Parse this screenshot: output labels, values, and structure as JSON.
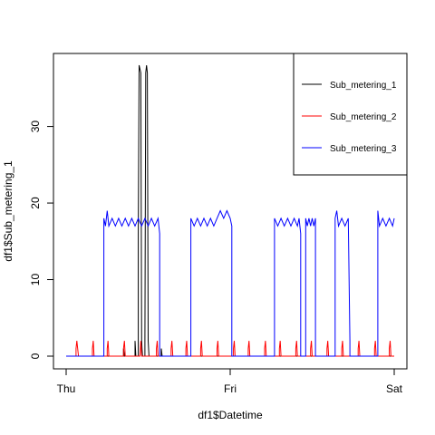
{
  "chart_data": {
    "type": "line",
    "title": "",
    "xlabel": "df1$Datetime",
    "ylabel": "df1$Sub_metering_1",
    "xlim": [
      0,
      2
    ],
    "ylim": [
      0,
      38
    ],
    "x_ticks": [
      {
        "value": 0,
        "label": "Thu"
      },
      {
        "value": 1,
        "label": "Fri"
      },
      {
        "value": 2,
        "label": "Sat"
      }
    ],
    "y_ticks": [
      0,
      10,
      20,
      30
    ],
    "grid": false,
    "legend_position": "top-right",
    "series": [
      {
        "name": "Sub_metering_1",
        "color": "#000000",
        "points": [
          [
            0.0,
            0
          ],
          [
            0.35,
            0
          ],
          [
            0.35,
            1
          ],
          [
            0.355,
            0
          ],
          [
            0.42,
            0
          ],
          [
            0.42,
            2
          ],
          [
            0.425,
            0
          ],
          [
            0.44,
            0
          ],
          [
            0.44,
            16
          ],
          [
            0.445,
            38
          ],
          [
            0.455,
            37
          ],
          [
            0.46,
            2
          ],
          [
            0.465,
            0
          ],
          [
            0.48,
            0
          ],
          [
            0.48,
            2
          ],
          [
            0.485,
            37
          ],
          [
            0.49,
            38
          ],
          [
            0.495,
            37
          ],
          [
            0.5,
            2
          ],
          [
            0.505,
            0
          ],
          [
            0.58,
            0
          ],
          [
            0.58,
            1
          ],
          [
            0.585,
            0
          ],
          [
            2.0,
            0
          ]
        ]
      },
      {
        "name": "Sub_metering_2",
        "color": "#ff0000",
        "points": [
          [
            0.0,
            0
          ],
          [
            0.06,
            0
          ],
          [
            0.06,
            1
          ],
          [
            0.065,
            2
          ],
          [
            0.07,
            1
          ],
          [
            0.075,
            0
          ],
          [
            0.16,
            0
          ],
          [
            0.16,
            1
          ],
          [
            0.165,
            2
          ],
          [
            0.17,
            0
          ],
          [
            0.25,
            0
          ],
          [
            0.25,
            1
          ],
          [
            0.255,
            2
          ],
          [
            0.26,
            0
          ],
          [
            0.35,
            0
          ],
          [
            0.35,
            1
          ],
          [
            0.355,
            2
          ],
          [
            0.36,
            0
          ],
          [
            0.45,
            0
          ],
          [
            0.455,
            2
          ],
          [
            0.46,
            0
          ],
          [
            0.55,
            0
          ],
          [
            0.55,
            1
          ],
          [
            0.555,
            2
          ],
          [
            0.56,
            0
          ],
          [
            0.64,
            0
          ],
          [
            0.64,
            1
          ],
          [
            0.645,
            2
          ],
          [
            0.65,
            0
          ],
          [
            0.73,
            0
          ],
          [
            0.73,
            1
          ],
          [
            0.735,
            2
          ],
          [
            0.74,
            0
          ],
          [
            0.82,
            0
          ],
          [
            0.82,
            1
          ],
          [
            0.825,
            2
          ],
          [
            0.83,
            0
          ],
          [
            0.92,
            0
          ],
          [
            0.92,
            1
          ],
          [
            0.925,
            2
          ],
          [
            0.93,
            0
          ],
          [
            1.02,
            0
          ],
          [
            1.02,
            1
          ],
          [
            1.025,
            2
          ],
          [
            1.03,
            0
          ],
          [
            1.11,
            0
          ],
          [
            1.11,
            1
          ],
          [
            1.115,
            2
          ],
          [
            1.12,
            0
          ],
          [
            1.21,
            0
          ],
          [
            1.21,
            1
          ],
          [
            1.215,
            2
          ],
          [
            1.22,
            0
          ],
          [
            1.3,
            0
          ],
          [
            1.3,
            1
          ],
          [
            1.305,
            2
          ],
          [
            1.31,
            0
          ],
          [
            1.4,
            0
          ],
          [
            1.4,
            1
          ],
          [
            1.405,
            2
          ],
          [
            1.41,
            0
          ],
          [
            1.49,
            0
          ],
          [
            1.49,
            1
          ],
          [
            1.495,
            2
          ],
          [
            1.5,
            0
          ],
          [
            1.59,
            0
          ],
          [
            1.59,
            1
          ],
          [
            1.595,
            2
          ],
          [
            1.6,
            0
          ],
          [
            1.68,
            0
          ],
          [
            1.68,
            1
          ],
          [
            1.685,
            2
          ],
          [
            1.69,
            0
          ],
          [
            1.78,
            0
          ],
          [
            1.78,
            1
          ],
          [
            1.785,
            2
          ],
          [
            1.79,
            0
          ],
          [
            1.88,
            0
          ],
          [
            1.88,
            1
          ],
          [
            1.885,
            2
          ],
          [
            1.89,
            0
          ],
          [
            1.97,
            0
          ],
          [
            1.97,
            1
          ],
          [
            1.975,
            2
          ],
          [
            1.98,
            0
          ],
          [
            2.0,
            0
          ]
        ]
      },
      {
        "name": "Sub_metering_3",
        "color": "#0000ff",
        "points": [
          [
            0.0,
            0
          ],
          [
            0.23,
            0
          ],
          [
            0.23,
            18
          ],
          [
            0.24,
            17
          ],
          [
            0.25,
            19
          ],
          [
            0.26,
            17
          ],
          [
            0.28,
            18
          ],
          [
            0.3,
            17
          ],
          [
            0.32,
            18
          ],
          [
            0.34,
            17
          ],
          [
            0.36,
            18
          ],
          [
            0.38,
            17
          ],
          [
            0.4,
            18
          ],
          [
            0.42,
            17
          ],
          [
            0.44,
            18
          ],
          [
            0.46,
            17
          ],
          [
            0.48,
            18
          ],
          [
            0.5,
            17
          ],
          [
            0.52,
            18
          ],
          [
            0.54,
            17
          ],
          [
            0.56,
            18
          ],
          [
            0.57,
            16
          ],
          [
            0.57,
            0
          ],
          [
            0.76,
            0
          ],
          [
            0.76,
            18
          ],
          [
            0.78,
            17
          ],
          [
            0.8,
            18
          ],
          [
            0.82,
            17
          ],
          [
            0.84,
            18
          ],
          [
            0.86,
            17
          ],
          [
            0.88,
            18
          ],
          [
            0.9,
            17
          ],
          [
            0.92,
            18
          ],
          [
            0.94,
            19
          ],
          [
            0.96,
            18
          ],
          [
            0.98,
            19
          ],
          [
            1.0,
            18
          ],
          [
            1.01,
            17
          ],
          [
            1.01,
            0
          ],
          [
            1.27,
            0
          ],
          [
            1.27,
            18
          ],
          [
            1.29,
            17
          ],
          [
            1.31,
            18
          ],
          [
            1.33,
            17
          ],
          [
            1.35,
            18
          ],
          [
            1.37,
            17
          ],
          [
            1.39,
            18
          ],
          [
            1.41,
            17
          ],
          [
            1.42,
            18
          ],
          [
            1.43,
            16
          ],
          [
            1.43,
            0
          ],
          [
            1.46,
            0
          ],
          [
            1.46,
            18
          ],
          [
            1.47,
            17
          ],
          [
            1.48,
            18
          ],
          [
            1.49,
            17
          ],
          [
            1.5,
            18
          ],
          [
            1.51,
            17
          ],
          [
            1.52,
            18
          ],
          [
            1.52,
            0
          ],
          [
            1.64,
            0
          ],
          [
            1.64,
            18
          ],
          [
            1.65,
            19
          ],
          [
            1.66,
            17
          ],
          [
            1.68,
            18
          ],
          [
            1.7,
            17
          ],
          [
            1.72,
            18
          ],
          [
            1.73,
            2
          ],
          [
            1.73,
            0
          ],
          [
            1.9,
            0
          ],
          [
            1.9,
            19
          ],
          [
            1.91,
            17
          ],
          [
            1.93,
            18
          ],
          [
            1.95,
            17
          ],
          [
            1.97,
            18
          ],
          [
            1.99,
            17
          ],
          [
            2.0,
            18
          ]
        ]
      }
    ]
  }
}
